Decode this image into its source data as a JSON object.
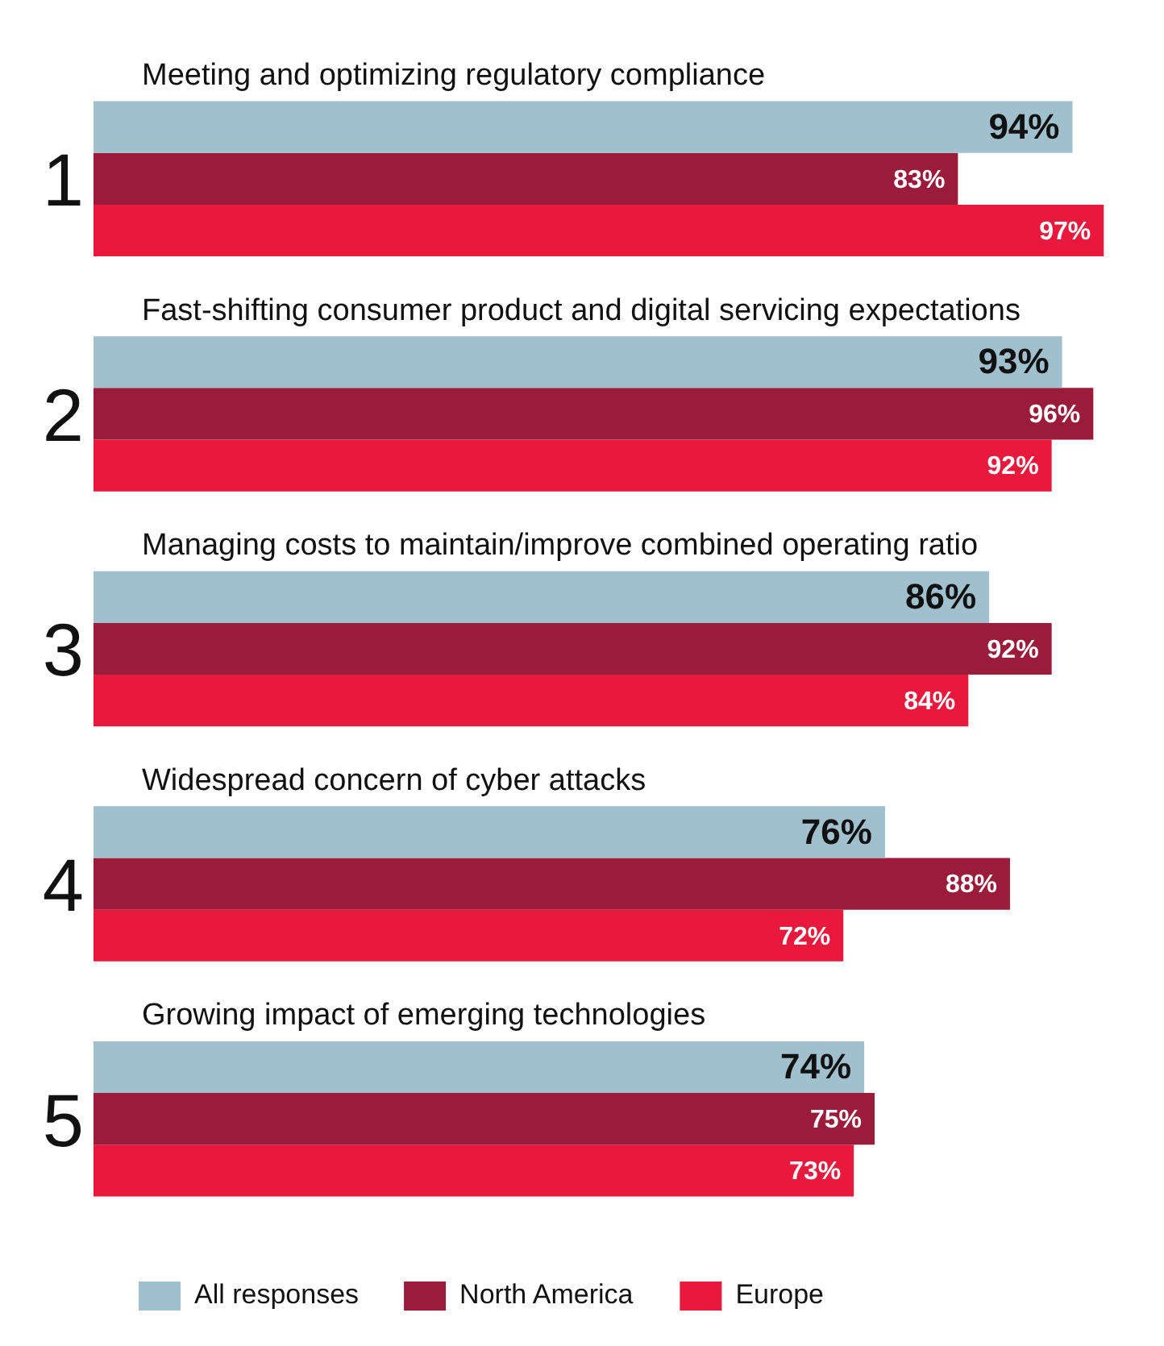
{
  "chart_data": {
    "type": "bar",
    "orientation": "horizontal",
    "categories": [
      "Meeting and optimizing regulatory compliance",
      "Fast-shifting consumer product and digital servicing expectations",
      "Managing costs to maintain/improve combined operating ratio",
      "Widespread concern of cyber attacks",
      "Growing impact of emerging technologies"
    ],
    "series": [
      {
        "name": "All responses",
        "color": "#9fc0cc",
        "values": [
          94,
          93,
          86,
          76,
          74
        ],
        "value_labels": [
          "94%",
          "93%",
          "86%",
          "76%",
          "74%"
        ]
      },
      {
        "name": "North America",
        "color": "#9b1c3a",
        "values": [
          83,
          96,
          92,
          88,
          75
        ],
        "value_labels": [
          "83%",
          "96%",
          "92%",
          "88%",
          "75%"
        ]
      },
      {
        "name": "Europe",
        "color": "#e8193c",
        "values": [
          97,
          92,
          84,
          72,
          73
        ],
        "value_labels": [
          "97%",
          "92%",
          "84%",
          "72%",
          "73%"
        ]
      }
    ],
    "annotations": [
      "1",
      "2",
      "3",
      "4",
      "5"
    ],
    "legend": "bottom left"
  }
}
